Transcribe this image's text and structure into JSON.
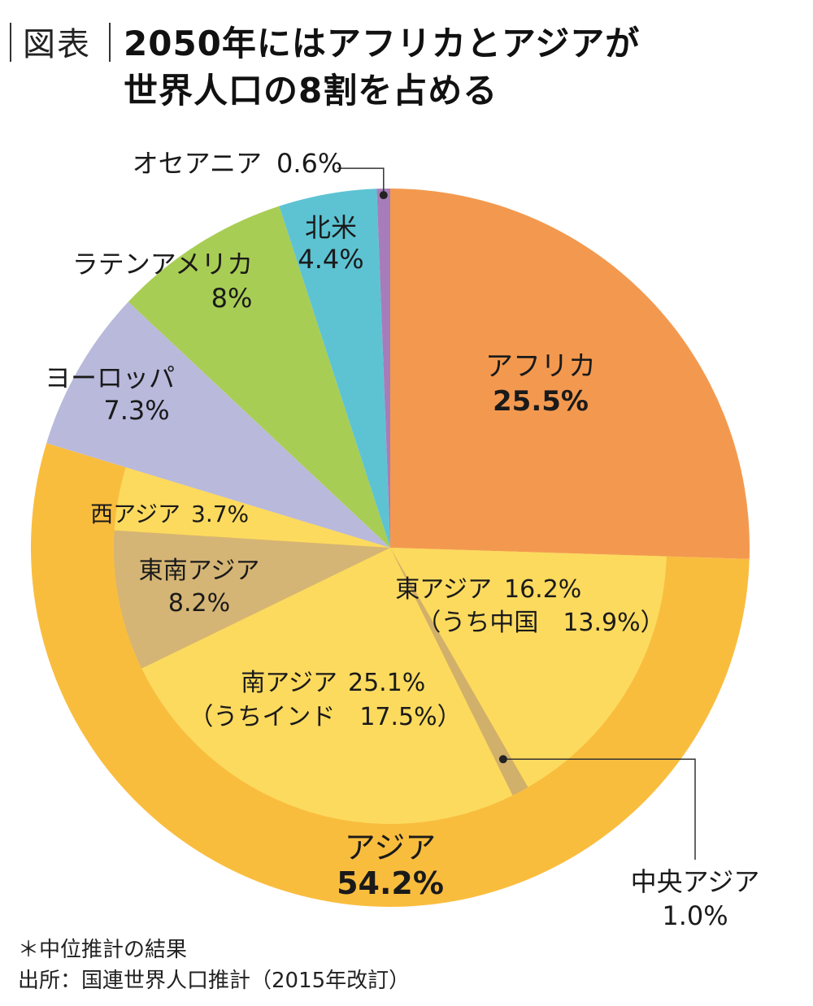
{
  "header": {
    "tag": "図表",
    "title_line1": "2050年にはアフリカとアジアが",
    "title_line2": "世界人口の8割を占める"
  },
  "chart_data": {
    "type": "pie",
    "title": "2050年にはアフリカとアジアが世界人口の8割を占める",
    "unit": "%",
    "outer_ring": [
      {
        "id": "asia",
        "name": "アジア",
        "value": 54.2,
        "label": "54.2%",
        "color": "#F9BD3E"
      }
    ],
    "slices": [
      {
        "id": "africa",
        "name": "アフリカ",
        "value": 25.5,
        "label": "25.5%",
        "color": "#F3994F"
      },
      {
        "id": "east-asia",
        "name": "東アジア",
        "value": 16.2,
        "label": "16.2%",
        "sub": "（うち中国　13.9%）",
        "color": "#FCDA5E"
      },
      {
        "id": "central-asia",
        "name": "中央アジア",
        "value": 1.0,
        "label": "1.0%",
        "color": "#D0B06A"
      },
      {
        "id": "south-asia",
        "name": "南アジア",
        "value": 25.1,
        "label": "25.1%",
        "sub": "（うちインド　17.5%）",
        "color": "#FCDA5E"
      },
      {
        "id": "southeast-asia",
        "name": "東南アジア",
        "value": 8.2,
        "label": "8.2%",
        "color": "#D5B575"
      },
      {
        "id": "west-asia",
        "name": "西アジア",
        "value": 3.7,
        "label": "3.7%",
        "color": "#FCDA5E"
      },
      {
        "id": "europe",
        "name": "ヨーロッパ",
        "value": 7.3,
        "label": "7.3%",
        "color": "#B9B9DC"
      },
      {
        "id": "latin-america",
        "name": "ラテンアメリカ",
        "value": 8.0,
        "label": "8%",
        "color": "#A8CD54"
      },
      {
        "id": "north-america",
        "name": "北米",
        "value": 4.4,
        "label": "4.4%",
        "color": "#5DC3D3"
      },
      {
        "id": "oceania",
        "name": "オセアニア",
        "value": 0.6,
        "label": "0.6%",
        "color": "#A67DB9"
      }
    ]
  },
  "footer": {
    "note": "＊中位推計の結果",
    "source": "出所：国連世界人口推計（2015年改訂）"
  }
}
